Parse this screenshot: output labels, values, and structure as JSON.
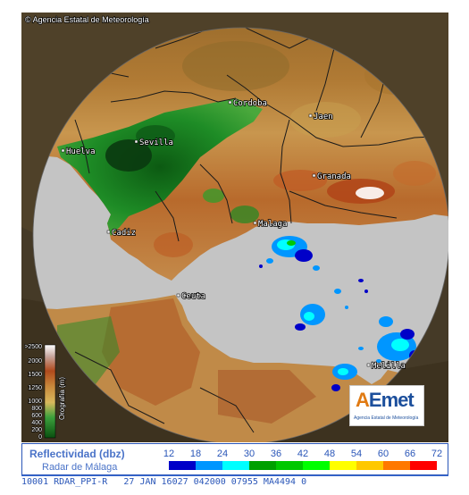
{
  "copyright": "© Agencia Estatal de Meteorología",
  "cities": [
    {
      "name": "Cordoba"
    },
    {
      "name": "Jaen"
    },
    {
      "name": "Sevilla"
    },
    {
      "name": "Huelva"
    },
    {
      "name": "Granada"
    },
    {
      "name": "Malaga"
    },
    {
      "name": "Cadiz"
    },
    {
      "name": "Ceuta"
    },
    {
      "name": "Melilla"
    }
  ],
  "orography": {
    "title": "Orografía (m)",
    "ticks": [
      ">2500",
      "2000",
      "1500",
      "1250",
      "1000",
      "800",
      "600",
      "400",
      "200",
      "0"
    ]
  },
  "logo": {
    "brand_a": "A",
    "brand_rest": "Emet",
    "subtitle": "Agencia Estatal de Meteorología"
  },
  "legend": {
    "title": "Reflectividad (dbz)",
    "subtitle": "Radar de Málaga",
    "levels": [
      {
        "value": "12",
        "color": "#0000c8"
      },
      {
        "value": "18",
        "color": "#0096ff"
      },
      {
        "value": "24",
        "color": "#00ffff"
      },
      {
        "value": "30",
        "color": "#00a000"
      },
      {
        "value": "36",
        "color": "#00c800"
      },
      {
        "value": "42",
        "color": "#00ff00"
      },
      {
        "value": "48",
        "color": "#ffff00"
      },
      {
        "value": "54",
        "color": "#ffc800"
      },
      {
        "value": "60",
        "color": "#ff7800"
      },
      {
        "value": "66",
        "color": "#ff0000"
      },
      {
        "value": "72",
        "color": "#c8005a"
      }
    ]
  },
  "status_bar": {
    "text": "10001 RDAR_PPI-R   27 JAN 16027 042000 07955 MA4494 0"
  },
  "colors": {
    "sea": "#c4c4c4",
    "lowland": "#148c1e",
    "hills": "#b88a46",
    "mountains": "#c04e1e",
    "legend_text": "#4a73c8"
  }
}
